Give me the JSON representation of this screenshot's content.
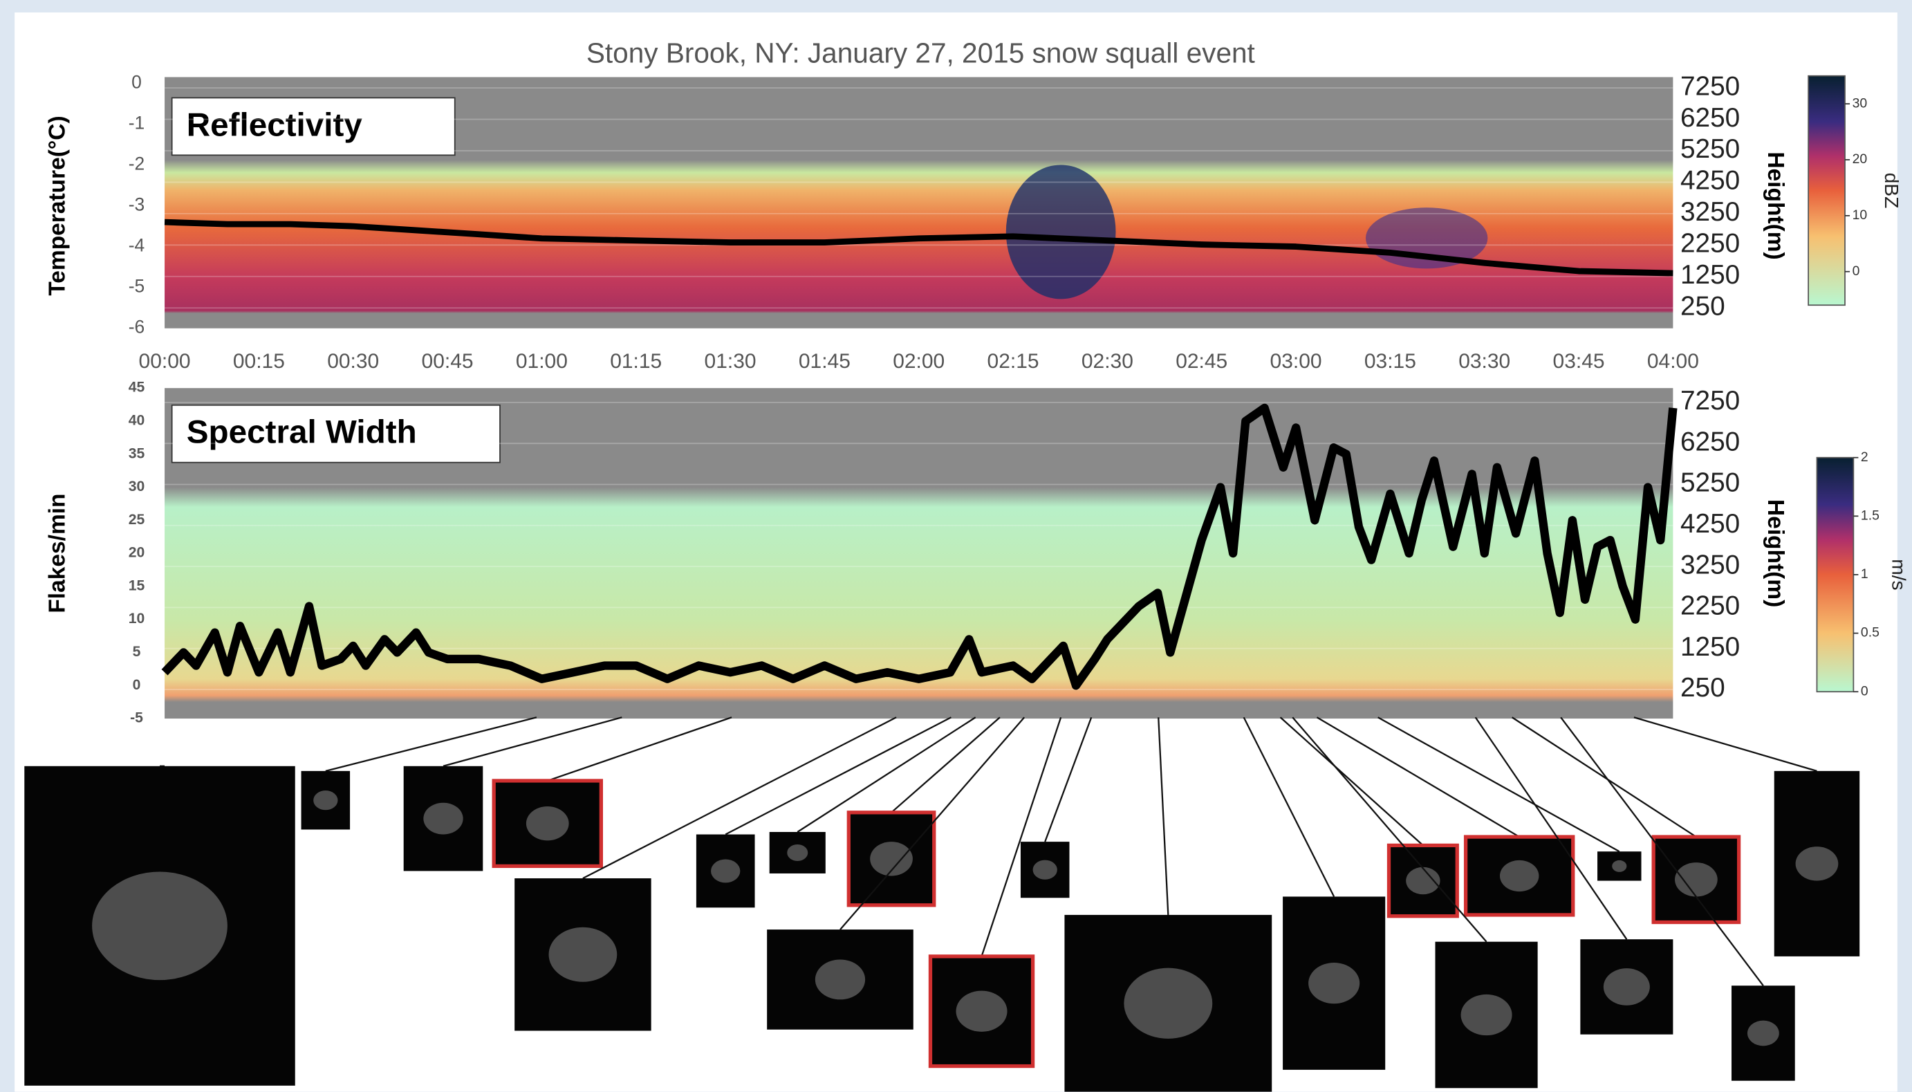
{
  "chart_data": [
    {
      "type": "line",
      "title": "Stony Brook, NY: January 27, 2015 snow squall event",
      "annotation": "Reflectivity",
      "ylabel": "Temperature(°C)",
      "y2label": "Height(m)",
      "color": "#000000",
      "x": [
        0,
        10,
        20,
        30,
        40,
        50,
        60,
        75,
        90,
        105,
        120,
        135,
        150,
        165,
        180,
        195,
        210,
        225,
        240
      ],
      "values": [
        -3.4,
        -3.45,
        -3.45,
        -3.5,
        -3.6,
        -3.7,
        -3.8,
        -3.85,
        -3.9,
        -3.9,
        -3.8,
        -3.75,
        -3.85,
        -3.95,
        -4.0,
        -4.15,
        -4.4,
        -4.6,
        -4.65
      ],
      "xlim": [
        0,
        240
      ],
      "xticks": [
        {
          "value": 0,
          "label": "00:00"
        },
        {
          "value": 15,
          "label": "00:15"
        },
        {
          "value": 30,
          "label": "00:30"
        },
        {
          "value": 45,
          "label": "00:45"
        },
        {
          "value": 60,
          "label": "01:00"
        },
        {
          "value": 75,
          "label": "01:15"
        },
        {
          "value": 90,
          "label": "01:30"
        },
        {
          "value": 105,
          "label": "01:45"
        },
        {
          "value": 120,
          "label": "02:00"
        },
        {
          "value": 135,
          "label": "02:15"
        },
        {
          "value": 150,
          "label": "02:30"
        },
        {
          "value": 165,
          "label": "02:45"
        },
        {
          "value": 180,
          "label": "03:00"
        },
        {
          "value": 195,
          "label": "03:15"
        },
        {
          "value": 210,
          "label": "03:30"
        },
        {
          "value": 225,
          "label": "03:45"
        },
        {
          "value": 240,
          "label": "04:00"
        }
      ],
      "ylim": [
        -6,
        0
      ],
      "yticks": [
        0,
        -1,
        -2,
        -3,
        -4,
        -5,
        -6
      ],
      "y2lim": [
        -400,
        7400
      ],
      "y2ticks": [
        7250,
        6250,
        5250,
        4250,
        3250,
        2250,
        1250,
        250
      ],
      "colorbar": {
        "label": "dBZ",
        "lim": [
          -6,
          35
        ],
        "ticks": [
          30,
          20,
          10,
          0
        ]
      }
    },
    {
      "type": "line",
      "annotation": "Spectral Width",
      "ylabel": "Flakes/min",
      "y2label": "Height(m)",
      "color": "#000000",
      "x": [
        0,
        3,
        5,
        8,
        10,
        12,
        15,
        18,
        20,
        23,
        25,
        28,
        30,
        32,
        35,
        37,
        40,
        42,
        45,
        50,
        55,
        60,
        65,
        70,
        75,
        80,
        85,
        90,
        95,
        100,
        105,
        110,
        115,
        120,
        125,
        128,
        130,
        135,
        138,
        140,
        143,
        145,
        148,
        150,
        155,
        158,
        160,
        165,
        168,
        170,
        172,
        175,
        178,
        180,
        183,
        186,
        188,
        190,
        192,
        195,
        198,
        200,
        202,
        205,
        208,
        210,
        212,
        215,
        218,
        220,
        222,
        224,
        226,
        228,
        230,
        232,
        234,
        236,
        238,
        240
      ],
      "values": [
        2,
        5,
        3,
        8,
        2,
        9,
        2,
        8,
        2,
        12,
        3,
        4,
        6,
        3,
        7,
        5,
        8,
        5,
        4,
        4,
        3,
        1,
        2,
        3,
        3,
        1,
        3,
        2,
        3,
        1,
        3,
        1,
        2,
        1,
        2,
        7,
        2,
        3,
        1,
        3,
        6,
        0,
        4,
        7,
        12,
        14,
        5,
        22,
        30,
        20,
        40,
        42,
        33,
        39,
        25,
        36,
        35,
        24,
        19,
        29,
        20,
        28,
        34,
        21,
        32,
        20,
        33,
        23,
        34,
        20,
        11,
        25,
        13,
        21,
        22,
        15,
        10,
        30,
        22,
        42
      ],
      "xlim": [
        0,
        240
      ],
      "ylim": [
        -5,
        45
      ],
      "yticks": [
        45,
        40,
        35,
        30,
        25,
        20,
        15,
        10,
        5,
        0,
        -5
      ],
      "y2lim": [
        -460,
        7600
      ],
      "y2ticks": [
        7250,
        6250,
        5250,
        4250,
        3250,
        2250,
        1250,
        250
      ],
      "colorbar": {
        "label": "m/s",
        "lim": [
          0,
          2
        ],
        "ticks": [
          2,
          1.5,
          1,
          0.5,
          0
        ]
      }
    }
  ]
}
